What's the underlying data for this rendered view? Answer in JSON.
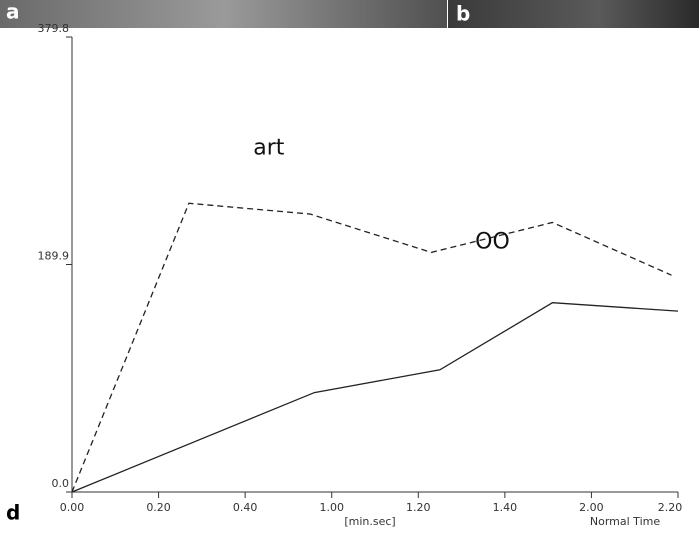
{
  "chart_data": {
    "type": "line",
    "panel_labels": [
      "a",
      "b",
      "d"
    ],
    "x_label": "[min.sec]",
    "x_label2": "Normal Time",
    "xlim": [
      0,
      140
    ],
    "xticks": [
      {
        "value": 0,
        "label": "0.00"
      },
      {
        "value": 20,
        "label": "0.20"
      },
      {
        "value": 40,
        "label": "0.40"
      },
      {
        "value": 60,
        "label": "1.00"
      },
      {
        "value": 80,
        "label": "1.20"
      },
      {
        "value": 100,
        "label": "1.40"
      },
      {
        "value": 120,
        "label": "2.00"
      },
      {
        "value": 140,
        "label": "2.20"
      }
    ],
    "ylim": [
      0,
      379.8
    ],
    "yticks": [
      {
        "value": 0,
        "label": "0.0"
      },
      189.9,
      379.8
    ],
    "series": [
      {
        "name": "art",
        "color": "#222",
        "dashed": true,
        "x": [
          0,
          27,
          55,
          83,
          111,
          138.5
        ],
        "values": [
          0,
          241,
          232,
          200,
          225,
          181
        ]
      },
      {
        "name": "OO",
        "color": "#222",
        "dashed": false,
        "x": [
          0,
          56,
          85,
          111,
          140
        ],
        "values": [
          0,
          83,
          102,
          158,
          151
        ]
      }
    ]
  }
}
